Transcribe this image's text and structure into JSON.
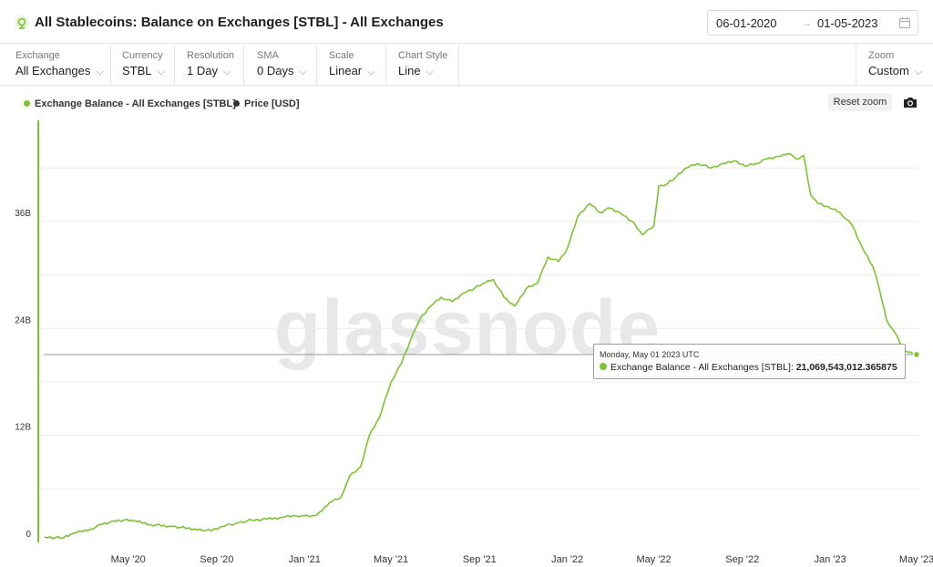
{
  "header": {
    "title": "All Stablecoins: Balance on Exchanges [STBL] - All Exchanges",
    "date_start": "06-01-2020",
    "date_arrow": "→",
    "date_end": "01-05-2023"
  },
  "toolbar": {
    "items": [
      {
        "label": "Exchange",
        "value": "All Exchanges"
      },
      {
        "label": "Currency",
        "value": "STBL"
      },
      {
        "label": "Resolution",
        "value": "1 Day"
      },
      {
        "label": "SMA",
        "value": "0 Days"
      },
      {
        "label": "Scale",
        "value": "Linear"
      },
      {
        "label": "Chart Style",
        "value": "Line"
      }
    ],
    "zoom": {
      "label": "Zoom",
      "value": "Custom"
    }
  },
  "legend": {
    "series1": "Exchange Balance - All Exchanges [STBL]",
    "series2": "Price [USD]"
  },
  "controls": {
    "reset_zoom": "Reset zoom"
  },
  "watermark": "glassnode",
  "tooltip": {
    "date": "Monday, May 01 2023 UTC",
    "series": "Exchange Balance - All Exchanges [STBL]:",
    "value": "21,069,543,012.365875"
  },
  "colors": {
    "line": "#7cc332",
    "price": "#333333",
    "grid": "#ececec"
  },
  "chart_data": {
    "type": "line",
    "ylim": [
      0,
      45
    ],
    "yticks": [
      0,
      12,
      24,
      36
    ],
    "ytick_labels": [
      "0",
      "12B",
      "24B",
      "36B"
    ],
    "xticks": [
      "2020-05-01",
      "2020-09-01",
      "2021-01-01",
      "2021-05-01",
      "2021-09-01",
      "2022-01-01",
      "2022-05-01",
      "2022-09-01",
      "2023-01-01",
      "2023-05-01"
    ],
    "xtick_labels": [
      "May '20",
      "Sep '20",
      "Jan '21",
      "May '21",
      "Sep '21",
      "Jan '22",
      "May '22",
      "Sep '22",
      "Jan '23",
      "May '23"
    ],
    "series": [
      {
        "name": "Exchange Balance - All Exchanges [STBL]",
        "x": [
          "2020-01-06",
          "2020-02-01",
          "2020-02-15",
          "2020-03-10",
          "2020-03-25",
          "2020-04-10",
          "2020-04-25",
          "2020-05-10",
          "2020-06-01",
          "2020-07-01",
          "2020-08-01",
          "2020-08-25",
          "2020-09-10",
          "2020-09-20",
          "2020-10-01",
          "2020-10-20",
          "2020-11-10",
          "2020-12-01",
          "2020-12-20",
          "2021-01-01",
          "2021-01-15",
          "2021-01-25",
          "2021-02-05",
          "2021-02-20",
          "2021-03-05",
          "2021-03-20",
          "2021-04-01",
          "2021-04-15",
          "2021-05-01",
          "2021-05-15",
          "2021-06-01",
          "2021-06-10",
          "2021-06-25",
          "2021-07-10",
          "2021-07-25",
          "2021-08-10",
          "2021-08-25",
          "2021-09-05",
          "2021-09-20",
          "2021-10-05",
          "2021-10-20",
          "2021-11-05",
          "2021-11-20",
          "2021-12-05",
          "2021-12-20",
          "2022-01-01",
          "2022-01-15",
          "2022-02-01",
          "2022-02-15",
          "2022-03-01",
          "2022-03-15",
          "2022-04-01",
          "2022-04-15",
          "2022-05-01",
          "2022-05-08",
          "2022-05-15",
          "2022-06-01",
          "2022-06-15",
          "2022-07-01",
          "2022-07-20",
          "2022-08-05",
          "2022-08-20",
          "2022-09-05",
          "2022-09-20",
          "2022-10-05",
          "2022-10-20",
          "2022-11-01",
          "2022-11-08",
          "2022-11-15",
          "2022-11-25",
          "2022-12-05",
          "2022-12-15",
          "2023-01-01",
          "2023-01-15",
          "2023-02-01",
          "2023-02-15",
          "2023-03-01",
          "2023-03-10",
          "2023-03-20",
          "2023-04-01",
          "2023-04-15",
          "2023-05-01"
        ],
        "values": [
          0.6,
          0.5,
          1.0,
          1.5,
          2.0,
          2.4,
          2.5,
          2.4,
          2.0,
          1.8,
          1.5,
          1.3,
          1.8,
          2.0,
          2.2,
          2.5,
          2.6,
          2.8,
          3.0,
          3.0,
          3.0,
          3.5,
          4.5,
          5.0,
          7.5,
          8.5,
          12.0,
          14.0,
          18.0,
          20.0,
          23.5,
          25.0,
          26.5,
          27.5,
          27.0,
          28.0,
          28.5,
          29.0,
          29.5,
          27.5,
          26.5,
          28.5,
          29.0,
          32.0,
          31.5,
          33.0,
          36.5,
          38.0,
          37.0,
          37.5,
          37.0,
          36.0,
          34.5,
          35.5,
          40.0,
          40.0,
          41.0,
          42.0,
          42.5,
          42.0,
          42.5,
          42.8,
          42.2,
          42.5,
          43.0,
          43.3,
          43.5,
          43.5,
          43.0,
          43.4,
          39.0,
          38.0,
          37.5,
          37.0,
          35.5,
          33.0,
          31.0,
          28.5,
          25.0,
          23.5,
          21.5,
          21.07
        ]
      }
    ]
  }
}
